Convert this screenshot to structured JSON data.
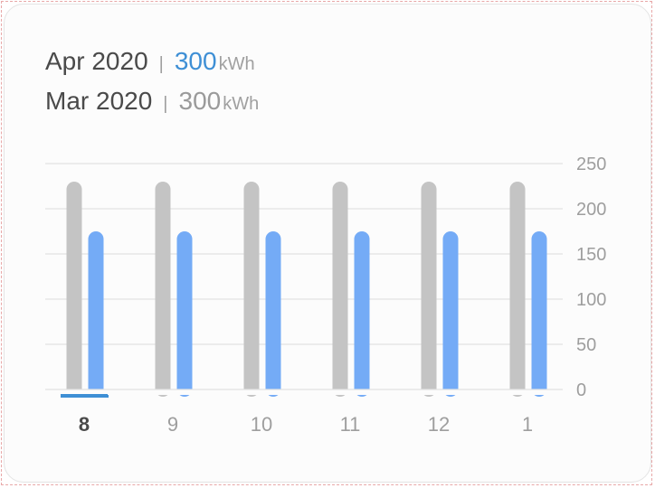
{
  "legend": [
    {
      "period": "Apr 2020",
      "separator": "|",
      "value": "300",
      "unit": "kWh"
    },
    {
      "period": "Mar 2020",
      "separator": "|",
      "value": "300",
      "unit": "kWh"
    }
  ],
  "colors": {
    "current_bar": "#74abf6",
    "previous_bar": "#c4c4c4",
    "accent": "#3e8fd5",
    "grid": "#e2e2e2"
  },
  "chart_data": {
    "type": "bar",
    "categories": [
      "8",
      "9",
      "10",
      "11",
      "12",
      "1"
    ],
    "selected_category": "8",
    "series": [
      {
        "name": "Mar 2020",
        "color": "#c4c4c4",
        "values": [
          230,
          230,
          230,
          230,
          230,
          230
        ]
      },
      {
        "name": "Apr 2020",
        "color": "#74abf6",
        "values": [
          175,
          175,
          175,
          175,
          175,
          175
        ]
      }
    ],
    "yticks": [
      "250",
      "200",
      "150",
      "100",
      "50",
      "0"
    ],
    "ylim": [
      0,
      250
    ],
    "y_axis_position": "right",
    "grid": true,
    "title": "",
    "xlabel": "",
    "ylabel": ""
  }
}
